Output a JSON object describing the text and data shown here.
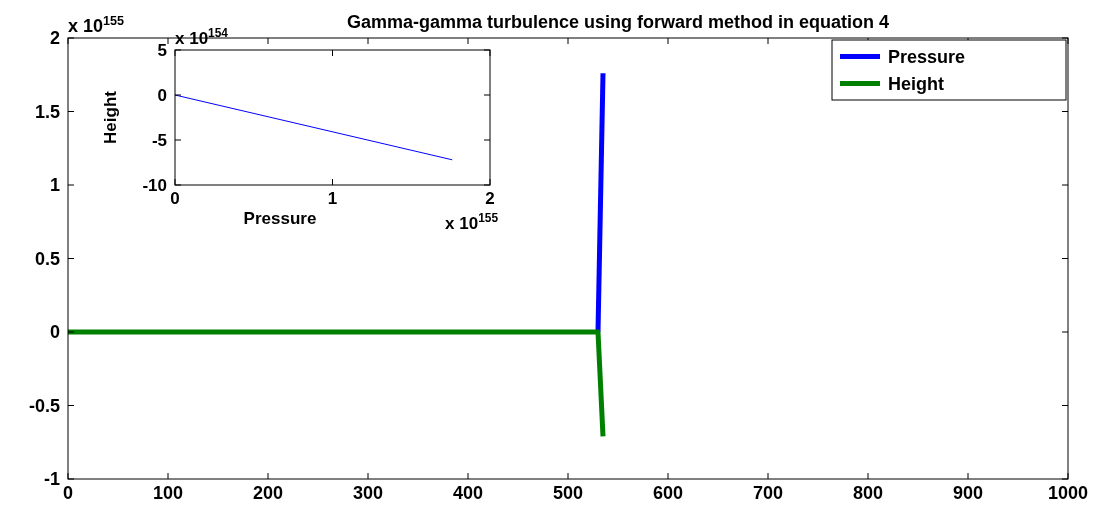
{
  "chart_data": [
    {
      "type": "line",
      "title": "Gamma-gamma turbulence using forward method in equation 4",
      "xlim": [
        0,
        1000
      ],
      "ylim": [
        -1,
        2
      ],
      "xticks": [
        0,
        100,
        200,
        300,
        400,
        500,
        600,
        700,
        800,
        900,
        1000
      ],
      "yticks": [
        -1,
        -0.5,
        0,
        0.5,
        1,
        1.5,
        2
      ],
      "legend": "top right",
      "annotations": [
        "x 10$^{155}$"
      ],
      "series": [
        {
          "name": "Pressure",
          "color": "#0000ff",
          "x": [
            530,
            535
          ],
          "values": [
            0,
            1.76
          ]
        },
        {
          "name": "Height",
          "color": "#008000",
          "x": [
            0,
            530,
            535
          ],
          "values": [
            0,
            0,
            -0.71
          ]
        }
      ]
    },
    {
      "type": "line",
      "xlabel": "Pressure",
      "ylabel": "Height",
      "xlim": [
        0,
        2
      ],
      "ylim": [
        -10,
        5
      ],
      "xticks": [
        0,
        1,
        2
      ],
      "yticks": [
        -10,
        -5,
        0,
        5
      ],
      "annotations": [
        "x 10$^{154}$",
        "x 10$^{155}$"
      ],
      "series": [
        {
          "color": "#0000ff",
          "x": [
            0,
            1.76
          ],
          "values": [
            0,
            -7.2
          ]
        }
      ]
    }
  ]
}
